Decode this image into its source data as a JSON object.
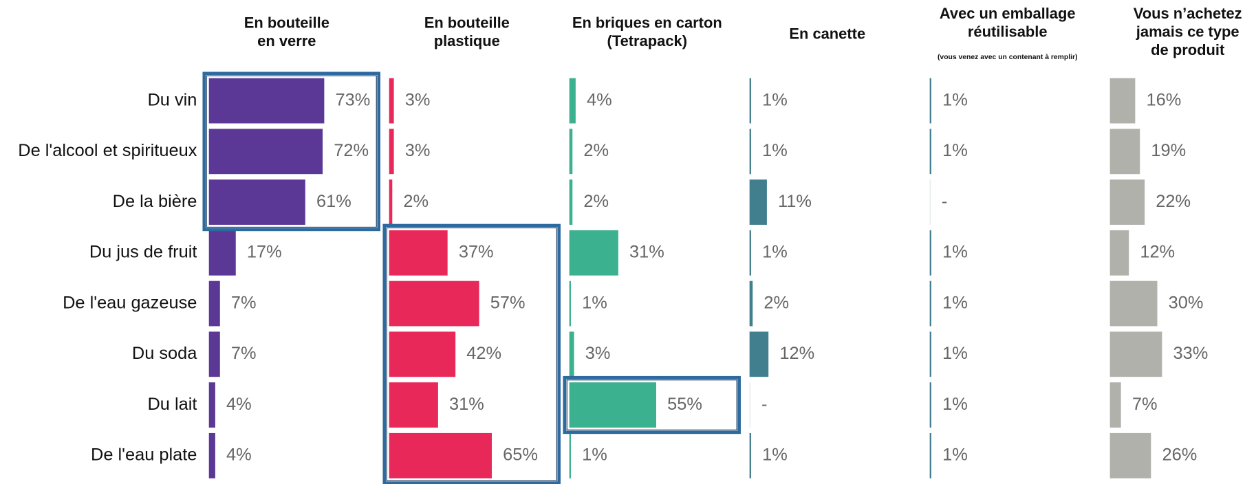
{
  "chart_data": {
    "type": "bar",
    "categories": [
      "Du vin",
      "De l'alcool et spiritueux",
      "De la bière",
      "Du jus de fruit",
      "De l'eau gazeuse",
      "Du soda",
      "Du lait",
      "De l'eau plate"
    ],
    "series": [
      {
        "name": "En bouteille\nen verre",
        "color": "#5c3896",
        "values": [
          73,
          72,
          61,
          17,
          7,
          7,
          4,
          4
        ],
        "value_labels": [
          "73%",
          "72%",
          "61%",
          "17%",
          "7%",
          "7%",
          "4%",
          "4%"
        ]
      },
      {
        "name": "En bouteille\nplastique",
        "color": "#e9285a",
        "values": [
          3,
          3,
          2,
          37,
          57,
          42,
          31,
          65
        ],
        "value_labels": [
          "3%",
          "3%",
          "2%",
          "37%",
          "57%",
          "42%",
          "31%",
          "65%"
        ]
      },
      {
        "name": "En briques en carton\n(Tetrapack)",
        "color": "#3bb18f",
        "values": [
          4,
          2,
          2,
          31,
          1,
          3,
          55,
          1
        ],
        "value_labels": [
          "4%",
          "2%",
          "2%",
          "31%",
          "1%",
          "3%",
          "55%",
          "1%"
        ]
      },
      {
        "name": "En canette",
        "color": "#427f8e",
        "values": [
          1,
          1,
          11,
          1,
          2,
          12,
          null,
          1
        ],
        "value_labels": [
          "1%",
          "1%",
          "11%",
          "1%",
          "2%",
          "12%",
          "-",
          "1%"
        ]
      },
      {
        "name": "Avec un emballage\nréutilisable",
        "subtitle": "(vous venez avec un contenant à remplir)",
        "color": "#427f8e",
        "values": [
          1,
          1,
          null,
          1,
          1,
          1,
          1,
          1
        ],
        "value_labels": [
          "1%",
          "1%",
          "-",
          "1%",
          "1%",
          "1%",
          "1%",
          "1%"
        ]
      },
      {
        "name": "Vous n’achetez\njamais ce type\nde produit",
        "color": "#b1b1ac",
        "values": [
          16,
          19,
          22,
          12,
          30,
          33,
          7,
          26
        ],
        "value_labels": [
          "16%",
          "19%",
          "22%",
          "12%",
          "30%",
          "33%",
          "7%",
          "26%"
        ]
      }
    ]
  }
}
